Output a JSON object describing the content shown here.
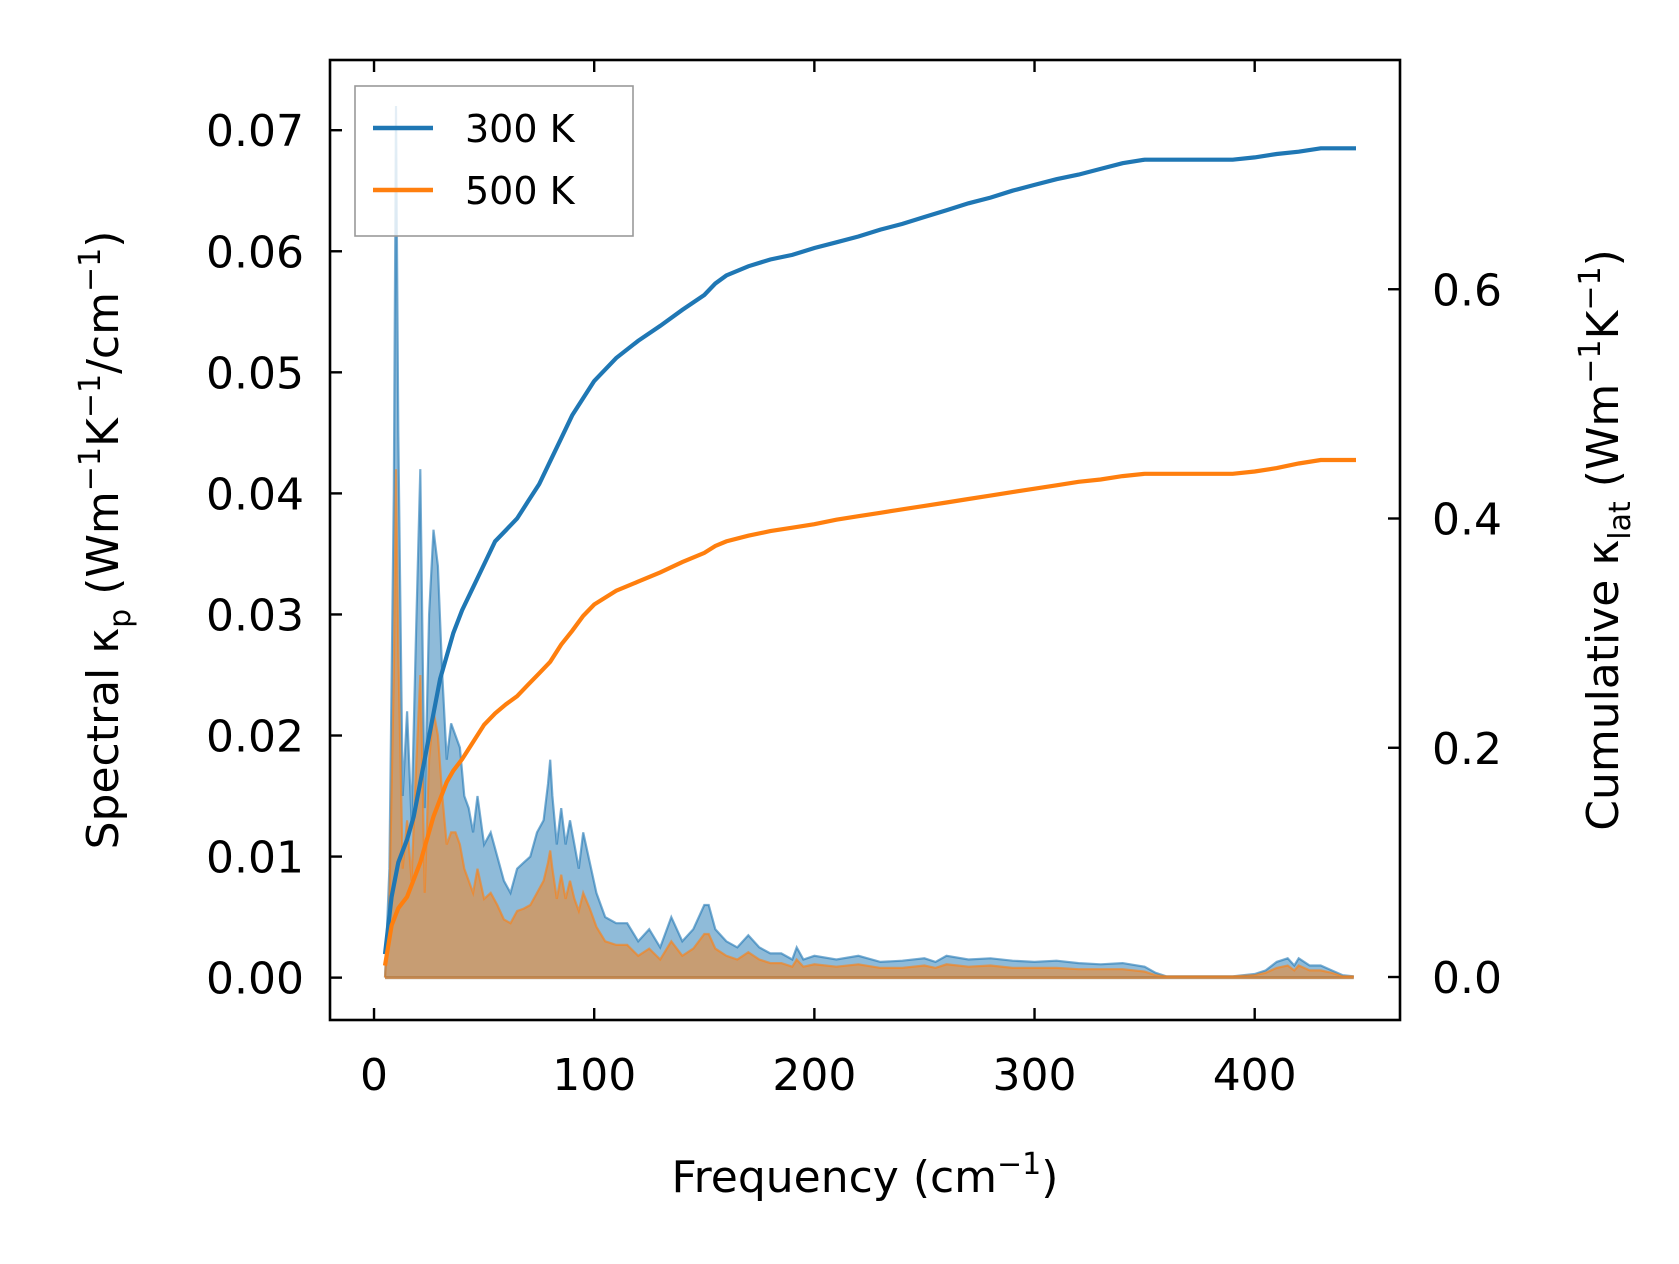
{
  "chart_data": {
    "type": "line",
    "xlabel": "Frequency (cm",
    "xlabel_sup": "−1",
    "xlabel_tail": ")",
    "ylabel_left": {
      "main": "Spectral κ",
      "sub": "p",
      "unit_a": " (Wm",
      "sup_a": "−1",
      "unit_b": "K",
      "sup_b": "−1",
      "unit_c": "/cm",
      "sup_c": "−1",
      "unit_d": ")"
    },
    "ylabel_right": {
      "main": "Cumulative κ",
      "sub": "lat",
      "unit_a": " (Wm",
      "sup_a": "−1",
      "unit_b": "K",
      "sup_b": "−1",
      "unit_c": ")"
    },
    "xlim": [
      -20,
      466
    ],
    "ylim_left": [
      -0.0035,
      0.0758
    ],
    "ylim_right": [
      -0.0375,
      0.8
    ],
    "xticks": [
      0,
      100,
      200,
      300,
      400
    ],
    "xtick_labels": [
      "0",
      "100",
      "200",
      "300",
      "400"
    ],
    "yticks_left": [
      0.0,
      0.01,
      0.02,
      0.03,
      0.04,
      0.05,
      0.06,
      0.07
    ],
    "ytick_labels_left": [
      "0.00",
      "0.01",
      "0.02",
      "0.03",
      "0.04",
      "0.05",
      "0.06",
      "0.07"
    ],
    "yticks_right": [
      0.0,
      0.2,
      0.4,
      0.6
    ],
    "ytick_labels_right": [
      "0.0",
      "0.2",
      "0.4",
      "0.6"
    ],
    "legend": {
      "location": "top-left",
      "entries": [
        "300 K",
        "500 K"
      ]
    },
    "series": [
      {
        "name": "300 K",
        "color": "#1f77b4",
        "fill_color": "#1f77b4",
        "spectral": {
          "x": [
            5,
            7,
            9,
            10,
            11,
            13,
            15,
            17,
            19,
            21,
            22,
            23,
            25,
            27,
            29,
            31,
            33,
            35,
            37,
            39,
            41,
            43,
            45,
            47,
            50,
            53,
            56,
            59,
            62,
            65,
            68,
            71,
            74,
            77,
            79,
            80,
            81,
            83,
            85,
            87,
            89,
            91,
            93,
            95,
            98,
            101,
            105,
            110,
            115,
            120,
            125,
            130,
            135,
            140,
            145,
            150,
            152,
            155,
            160,
            165,
            170,
            175,
            180,
            185,
            190,
            192,
            195,
            200,
            210,
            220,
            230,
            240,
            250,
            255,
            260,
            270,
            280,
            290,
            300,
            310,
            320,
            330,
            340,
            350,
            355,
            360,
            370,
            380,
            390,
            400,
            405,
            410,
            415,
            418,
            420,
            425,
            430,
            435,
            440,
            445
          ],
          "y": [
            0.0,
            0.009,
            0.04,
            0.072,
            0.045,
            0.015,
            0.022,
            0.013,
            0.028,
            0.042,
            0.028,
            0.014,
            0.03,
            0.037,
            0.034,
            0.025,
            0.018,
            0.021,
            0.02,
            0.019,
            0.015,
            0.014,
            0.012,
            0.015,
            0.011,
            0.012,
            0.01,
            0.008,
            0.007,
            0.009,
            0.0095,
            0.01,
            0.012,
            0.013,
            0.016,
            0.018,
            0.015,
            0.011,
            0.014,
            0.011,
            0.013,
            0.011,
            0.009,
            0.012,
            0.0095,
            0.007,
            0.005,
            0.0045,
            0.0045,
            0.003,
            0.004,
            0.0025,
            0.005,
            0.003,
            0.004,
            0.006,
            0.006,
            0.004,
            0.003,
            0.0025,
            0.0035,
            0.0025,
            0.002,
            0.002,
            0.0015,
            0.0025,
            0.0015,
            0.0018,
            0.0015,
            0.0018,
            0.0013,
            0.0014,
            0.0016,
            0.0013,
            0.0018,
            0.0015,
            0.0016,
            0.0014,
            0.0013,
            0.0014,
            0.0012,
            0.0011,
            0.0012,
            0.0009,
            0.0004,
            0.0001,
            0.0001,
            0.0001,
            0.0001,
            0.0003,
            0.0006,
            0.0013,
            0.0016,
            0.001,
            0.0016,
            0.001,
            0.001,
            0.0006,
            0.0002,
            0.0001
          ]
        },
        "cumulative": {
          "x": [
            5,
            8,
            11,
            13,
            15,
            18,
            21,
            24,
            27,
            30,
            33,
            36,
            40,
            45,
            50,
            55,
            60,
            65,
            70,
            75,
            80,
            85,
            90,
            95,
            100,
            110,
            120,
            130,
            140,
            150,
            155,
            160,
            170,
            180,
            190,
            200,
            210,
            220,
            230,
            240,
            250,
            260,
            270,
            280,
            290,
            300,
            310,
            320,
            330,
            340,
            350,
            360,
            370,
            380,
            390,
            400,
            410,
            420,
            430,
            440,
            446
          ],
          "y": [
            0.02,
            0.07,
            0.1,
            0.11,
            0.12,
            0.14,
            0.17,
            0.2,
            0.23,
            0.26,
            0.28,
            0.3,
            0.32,
            0.34,
            0.36,
            0.38,
            0.39,
            0.4,
            0.415,
            0.43,
            0.45,
            0.47,
            0.49,
            0.505,
            0.52,
            0.54,
            0.555,
            0.568,
            0.582,
            0.595,
            0.605,
            0.612,
            0.62,
            0.626,
            0.63,
            0.636,
            0.641,
            0.646,
            0.652,
            0.657,
            0.663,
            0.669,
            0.675,
            0.68,
            0.686,
            0.691,
            0.696,
            0.7,
            0.705,
            0.71,
            0.713,
            0.713,
            0.713,
            0.713,
            0.713,
            0.715,
            0.718,
            0.72,
            0.723,
            0.723,
            0.723
          ]
        }
      },
      {
        "name": "500 K",
        "color": "#ff7f0e",
        "fill_color": "#ff7f0e",
        "spectral": {
          "x": [
            5,
            7,
            9,
            10,
            11,
            13,
            15,
            17,
            19,
            21,
            22,
            23,
            25,
            27,
            29,
            31,
            33,
            35,
            37,
            39,
            41,
            43,
            45,
            47,
            50,
            53,
            56,
            59,
            62,
            65,
            68,
            71,
            74,
            77,
            79,
            80,
            81,
            83,
            85,
            87,
            89,
            91,
            93,
            95,
            98,
            101,
            105,
            110,
            115,
            120,
            125,
            130,
            135,
            140,
            145,
            150,
            152,
            155,
            160,
            165,
            170,
            175,
            180,
            185,
            190,
            192,
            195,
            200,
            210,
            220,
            230,
            240,
            250,
            255,
            260,
            270,
            280,
            290,
            300,
            310,
            320,
            330,
            340,
            350,
            355,
            360,
            370,
            380,
            390,
            400,
            405,
            410,
            415,
            418,
            420,
            425,
            430,
            435,
            440,
            445
          ],
          "y": [
            0.0,
            0.006,
            0.025,
            0.042,
            0.027,
            0.009,
            0.013,
            0.008,
            0.017,
            0.025,
            0.017,
            0.007,
            0.018,
            0.022,
            0.02,
            0.015,
            0.011,
            0.012,
            0.012,
            0.011,
            0.009,
            0.008,
            0.007,
            0.009,
            0.0065,
            0.007,
            0.006,
            0.0048,
            0.0045,
            0.0055,
            0.0057,
            0.006,
            0.007,
            0.008,
            0.0095,
            0.0105,
            0.009,
            0.0065,
            0.0085,
            0.0065,
            0.008,
            0.0065,
            0.0055,
            0.007,
            0.0057,
            0.0042,
            0.003,
            0.0027,
            0.0027,
            0.0018,
            0.0024,
            0.0015,
            0.003,
            0.0018,
            0.0024,
            0.0036,
            0.0036,
            0.0024,
            0.0018,
            0.0015,
            0.0021,
            0.0015,
            0.0012,
            0.0012,
            0.0009,
            0.0015,
            0.0009,
            0.0011,
            0.0009,
            0.0011,
            0.0008,
            0.0008,
            0.001,
            0.0008,
            0.0011,
            0.0009,
            0.001,
            0.0008,
            0.0008,
            0.0008,
            0.0007,
            0.0007,
            0.0007,
            0.0005,
            0.0002,
            0.0001,
            0.0001,
            0.0001,
            0.0001,
            0.0002,
            0.0004,
            0.0008,
            0.001,
            0.0006,
            0.001,
            0.0006,
            0.0006,
            0.0004,
            0.0001,
            0.0001
          ]
        },
        "cumulative": {
          "x": [
            5,
            8,
            11,
            13,
            15,
            18,
            21,
            24,
            27,
            30,
            33,
            36,
            40,
            45,
            50,
            55,
            60,
            65,
            70,
            75,
            80,
            85,
            90,
            95,
            100,
            110,
            120,
            130,
            140,
            150,
            155,
            160,
            170,
            180,
            190,
            200,
            210,
            220,
            230,
            240,
            250,
            260,
            270,
            280,
            290,
            300,
            310,
            320,
            330,
            340,
            350,
            360,
            370,
            380,
            390,
            400,
            410,
            420,
            430,
            440,
            446
          ],
          "y": [
            0.01,
            0.045,
            0.06,
            0.065,
            0.07,
            0.085,
            0.1,
            0.12,
            0.14,
            0.155,
            0.17,
            0.18,
            0.19,
            0.205,
            0.22,
            0.23,
            0.238,
            0.245,
            0.255,
            0.265,
            0.275,
            0.29,
            0.302,
            0.315,
            0.325,
            0.337,
            0.345,
            0.353,
            0.362,
            0.37,
            0.376,
            0.38,
            0.385,
            0.389,
            0.392,
            0.395,
            0.399,
            0.402,
            0.405,
            0.408,
            0.411,
            0.414,
            0.417,
            0.42,
            0.423,
            0.426,
            0.429,
            0.432,
            0.434,
            0.437,
            0.439,
            0.439,
            0.439,
            0.439,
            0.439,
            0.441,
            0.444,
            0.448,
            0.451,
            0.451,
            0.451
          ]
        }
      }
    ]
  }
}
